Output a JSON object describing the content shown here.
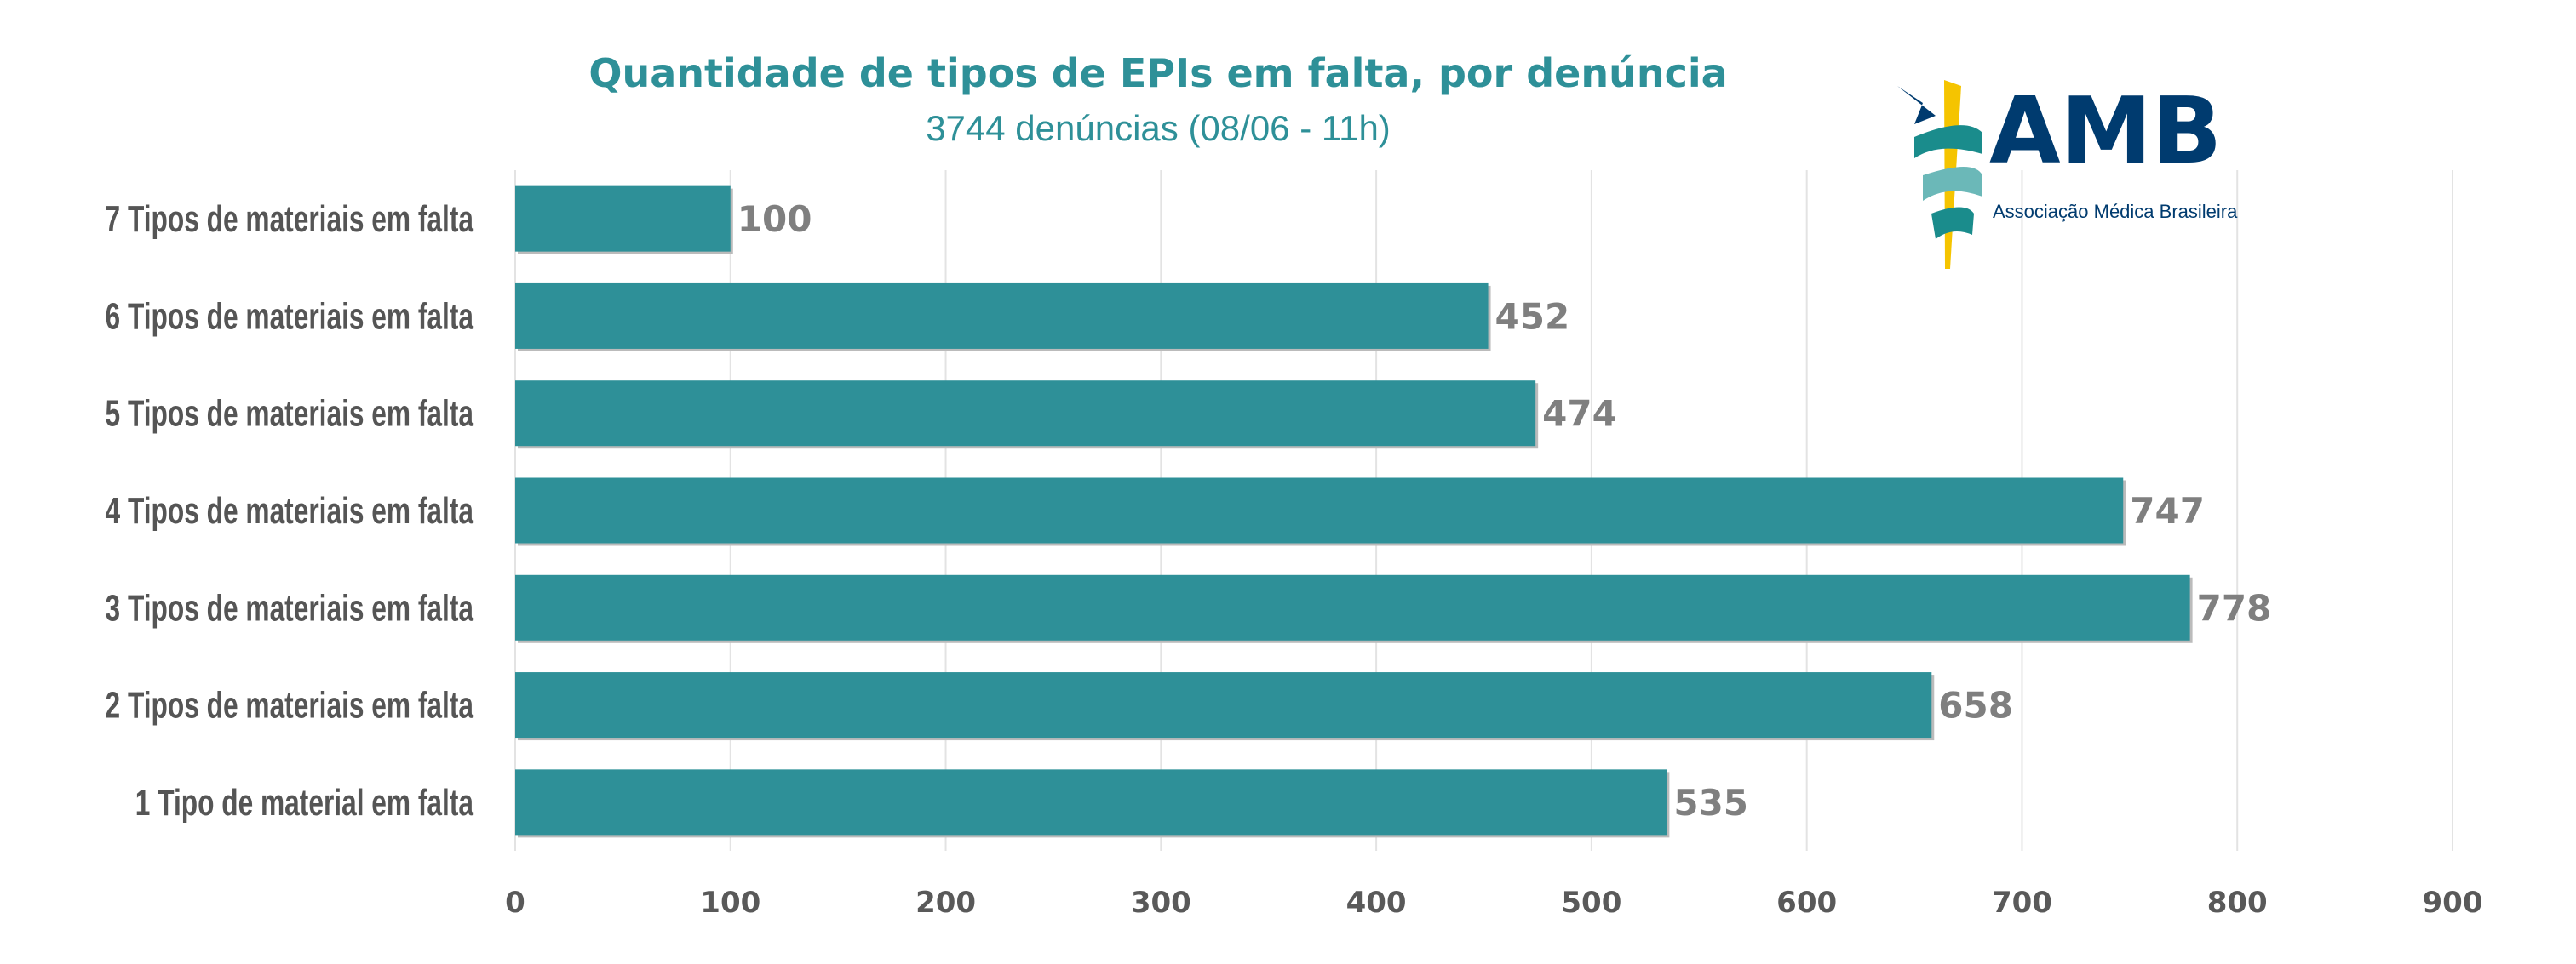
{
  "chart_data": {
    "type": "bar",
    "orientation": "horizontal",
    "title": "Quantidade de tipos de EPIs em falta, por denúncia",
    "subtitle": "3744 denúncias (08/06 - 11h)",
    "categories": [
      "7 Tipos de materiais em falta",
      "6 Tipos de materiais em falta",
      "5 Tipos de materiais em falta",
      "4 Tipos de materiais em falta",
      "3 Tipos de materiais em falta",
      "2 Tipos de materiais em falta",
      "1 Tipo de material em falta"
    ],
    "values": [
      100,
      452,
      474,
      747,
      778,
      658,
      535
    ],
    "xlim": [
      0,
      900
    ],
    "xticks": [
      0,
      100,
      200,
      300,
      400,
      500,
      600,
      700,
      800,
      900
    ],
    "grid": "vertical",
    "legend": "none",
    "colors": {
      "bar": "#2e9098",
      "title": "#2e9098",
      "grid": "#e3e3e3",
      "data_label": "#7f7f7f"
    }
  },
  "logo": {
    "text": "AMB",
    "tagline": "Associação Médica Brasileira",
    "colors": {
      "navy": "#003b6f",
      "yellow": "#f5c400",
      "teal": "#1a8c8c"
    }
  }
}
